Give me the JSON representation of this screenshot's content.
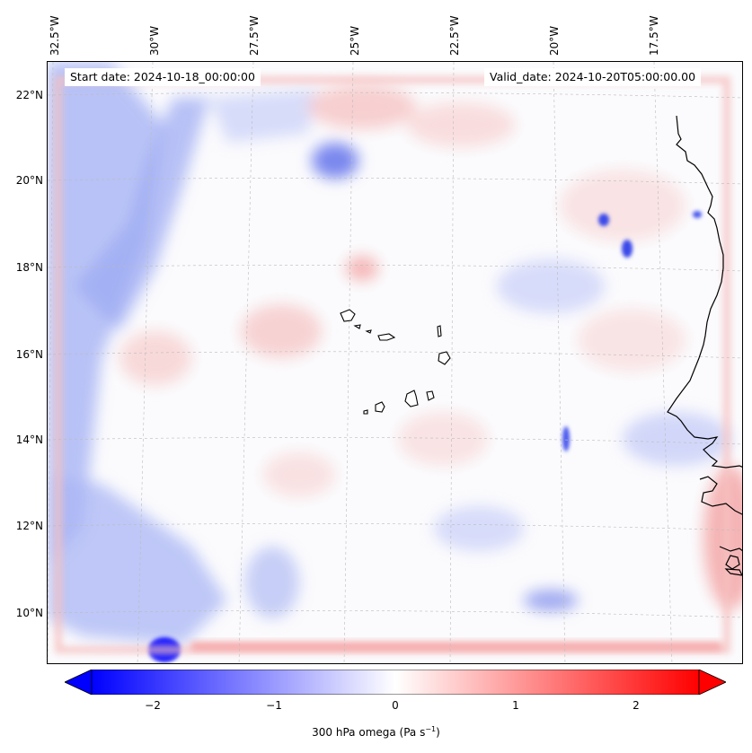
{
  "header": {
    "start_date": "Start date: 2024-10-18_00:00:00",
    "valid_date": "Valid_date: 2024-10-20T05:00:00.00"
  },
  "lon_labels": [
    "32.5°W",
    "30°W",
    "27.5°W",
    "25°W",
    "22.5°W",
    "20°W",
    "17.5°W"
  ],
  "lat_labels": [
    "22°N",
    "20°N",
    "18°N",
    "16°N",
    "14°N",
    "12°N",
    "10°N"
  ],
  "colorbar": {
    "ticks": [
      "−2",
      "−1",
      "0",
      "1",
      "2"
    ],
    "label": "300 hPa omega (Pa s",
    "label_sup": "−1",
    "label_end": ")",
    "range": [
      -2.5,
      2.5
    ],
    "colors": {
      "negative": "#0000ff",
      "zero": "#ffffff",
      "positive": "#ff0000"
    }
  },
  "map": {
    "field": "300 hPa omega",
    "lon_range": [
      -33,
      -15.5
    ],
    "lat_range": [
      9,
      22.8
    ],
    "coastline_color": "#000000",
    "gridline_style": "dashed-grey"
  }
}
